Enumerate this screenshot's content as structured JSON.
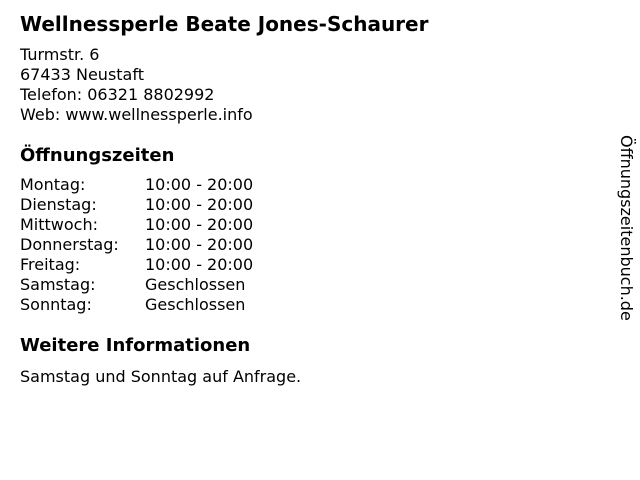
{
  "business": {
    "name": "Wellnessperle Beate Jones-Schaurer",
    "street": "Turmstr. 6",
    "city": "67433 Neustaft",
    "phone_line": "Telefon: 06321 8802992",
    "web_line": "Web: www.wellnessperle.info"
  },
  "hours": {
    "heading": "Öffnungszeiten",
    "rows": [
      {
        "day": "Montag:",
        "time": "10:00 - 20:00"
      },
      {
        "day": "Dienstag:",
        "time": "10:00 - 20:00"
      },
      {
        "day": "Mittwoch:",
        "time": "10:00 - 20:00"
      },
      {
        "day": "Donnerstag:",
        "time": "10:00 - 20:00"
      },
      {
        "day": "Freitag:",
        "time": "10:00 - 20:00"
      },
      {
        "day": "Samstag:",
        "time": "Geschlossen"
      },
      {
        "day": "Sonntag:",
        "time": "Geschlossen"
      }
    ]
  },
  "more_info": {
    "heading": "Weitere Informationen",
    "text": "Samstag und Sonntag auf Anfrage."
  },
  "watermark": {
    "text": "Öffnungszeitenbuch.de"
  },
  "colors": {
    "background": "#ffffff",
    "text": "#000000"
  }
}
